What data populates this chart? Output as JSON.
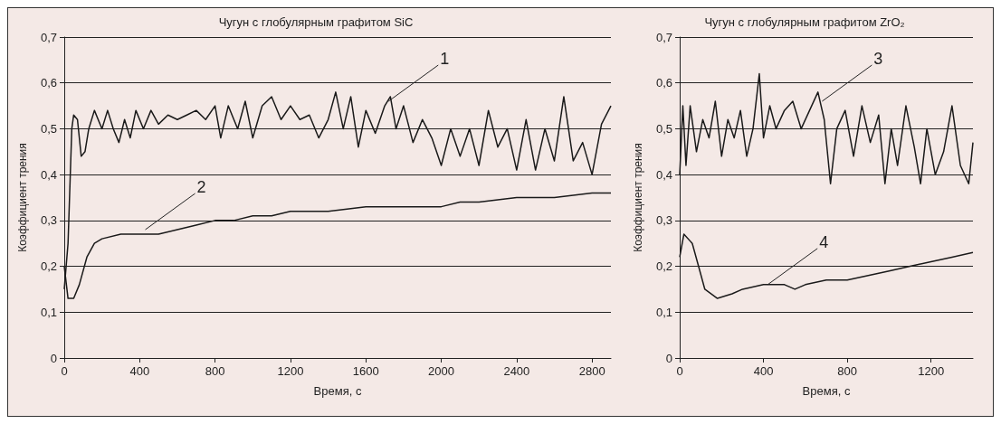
{
  "chart_data": [
    {
      "type": "line",
      "title": "Чугун с глобулярным графитом SiC",
      "xlabel": "Время, с",
      "ylabel": "Коэффициент трения",
      "xlim": [
        0,
        2900
      ],
      "xticks": [
        0,
        400,
        800,
        1200,
        1600,
        2000,
        2400,
        2800
      ],
      "ylim": [
        0,
        0.7
      ],
      "yticks": [
        0,
        {
          "value": 0.1,
          "label": "0,1"
        },
        {
          "value": 0.2,
          "label": "0,2"
        },
        {
          "value": 0.3,
          "label": "0,3"
        },
        {
          "value": 0.4,
          "label": "0,4"
        },
        {
          "value": 0.5,
          "label": "0,5"
        },
        {
          "value": 0.6,
          "label": "0,6"
        },
        {
          "value": 0.7,
          "label": "0,7"
        }
      ],
      "grid": "y",
      "marker": "none",
      "line_style": "solid",
      "series": [
        {
          "color": "#1a1a1a",
          "x": [
            0,
            20,
            40,
            50,
            70,
            90,
            110,
            130,
            160,
            200,
            230,
            260,
            290,
            320,
            350,
            380,
            420,
            460,
            500,
            550,
            600,
            650,
            700,
            750,
            800,
            830,
            870,
            920,
            960,
            1000,
            1050,
            1100,
            1150,
            1200,
            1250,
            1300,
            1350,
            1400,
            1440,
            1480,
            1520,
            1560,
            1600,
            1650,
            1700,
            1730,
            1760,
            1800,
            1850,
            1900,
            1950,
            2000,
            2050,
            2100,
            2150,
            2200,
            2250,
            2300,
            2350,
            2400,
            2450,
            2500,
            2550,
            2600,
            2650,
            2700,
            2750,
            2800,
            2850,
            2900
          ],
          "values": [
            0.15,
            0.25,
            0.5,
            0.53,
            0.52,
            0.44,
            0.45,
            0.5,
            0.54,
            0.5,
            0.54,
            0.5,
            0.47,
            0.52,
            0.48,
            0.54,
            0.5,
            0.54,
            0.51,
            0.53,
            0.52,
            0.53,
            0.54,
            0.52,
            0.55,
            0.48,
            0.55,
            0.5,
            0.56,
            0.48,
            0.55,
            0.57,
            0.52,
            0.55,
            0.52,
            0.53,
            0.48,
            0.52,
            0.58,
            0.5,
            0.57,
            0.46,
            0.54,
            0.49,
            0.55,
            0.57,
            0.5,
            0.55,
            0.47,
            0.52,
            0.48,
            0.42,
            0.5,
            0.44,
            0.5,
            0.42,
            0.54,
            0.46,
            0.5,
            0.41,
            0.52,
            0.41,
            0.5,
            0.43,
            0.57,
            0.43,
            0.47,
            0.4,
            0.51,
            0.55
          ]
        },
        {
          "color": "#1a1a1a",
          "x": [
            0,
            20,
            50,
            80,
            120,
            160,
            200,
            300,
            400,
            500,
            600,
            700,
            800,
            900,
            1000,
            1100,
            1200,
            1400,
            1600,
            1800,
            2000,
            2100,
            2200,
            2400,
            2600,
            2800,
            2900
          ],
          "values": [
            0.2,
            0.13,
            0.13,
            0.16,
            0.22,
            0.25,
            0.26,
            0.27,
            0.27,
            0.27,
            0.28,
            0.29,
            0.3,
            0.3,
            0.31,
            0.31,
            0.32,
            0.32,
            0.33,
            0.33,
            0.33,
            0.34,
            0.34,
            0.35,
            0.35,
            0.36,
            0.36
          ]
        }
      ],
      "annotations": [
        {
          "text": "1",
          "x": 1720,
          "y": 0.56
        },
        {
          "text": "2",
          "x": 430,
          "y": 0.28
        }
      ]
    },
    {
      "type": "line",
      "title": "Чугун с глобулярным графитом ZrO₂",
      "xlabel": "Время, с",
      "ylabel": "Коэффициент трения",
      "xlim": [
        0,
        1400
      ],
      "xticks": [
        0,
        400,
        800,
        1200
      ],
      "ylim": [
        0,
        0.7
      ],
      "yticks": [
        0,
        {
          "value": 0.1,
          "label": "0,1"
        },
        {
          "value": 0.2,
          "label": "0,2"
        },
        {
          "value": 0.3,
          "label": "0,3"
        },
        {
          "value": 0.4,
          "label": "0,4"
        },
        {
          "value": 0.5,
          "label": "0,5"
        },
        {
          "value": 0.6,
          "label": "0,6"
        },
        {
          "value": 0.7,
          "label": "0,7"
        }
      ],
      "grid": "y",
      "marker": "none",
      "line_style": "solid",
      "series": [
        {
          "color": "#1a1a1a",
          "x": [
            0,
            15,
            30,
            50,
            80,
            110,
            140,
            170,
            200,
            230,
            260,
            290,
            320,
            350,
            380,
            400,
            430,
            460,
            500,
            540,
            580,
            620,
            660,
            690,
            720,
            750,
            790,
            830,
            870,
            910,
            950,
            980,
            1010,
            1040,
            1080,
            1120,
            1150,
            1180,
            1220,
            1260,
            1300,
            1340,
            1380,
            1400
          ],
          "values": [
            0.4,
            0.55,
            0.42,
            0.55,
            0.45,
            0.52,
            0.48,
            0.56,
            0.44,
            0.52,
            0.48,
            0.54,
            0.44,
            0.5,
            0.62,
            0.48,
            0.55,
            0.5,
            0.54,
            0.56,
            0.5,
            0.54,
            0.58,
            0.52,
            0.38,
            0.5,
            0.54,
            0.44,
            0.55,
            0.47,
            0.53,
            0.38,
            0.5,
            0.42,
            0.55,
            0.46,
            0.38,
            0.5,
            0.4,
            0.45,
            0.55,
            0.42,
            0.38,
            0.47
          ]
        },
        {
          "color": "#1a1a1a",
          "x": [
            0,
            20,
            60,
            90,
            120,
            180,
            250,
            300,
            400,
            500,
            550,
            600,
            700,
            800,
            900,
            1000,
            1100,
            1200,
            1300,
            1400
          ],
          "values": [
            0.22,
            0.27,
            0.25,
            0.2,
            0.15,
            0.13,
            0.14,
            0.15,
            0.16,
            0.16,
            0.15,
            0.16,
            0.17,
            0.17,
            0.18,
            0.19,
            0.2,
            0.21,
            0.22,
            0.23
          ]
        }
      ],
      "annotations": [
        {
          "text": "3",
          "x": 680,
          "y": 0.56
        },
        {
          "text": "4",
          "x": 420,
          "y": 0.16
        }
      ]
    }
  ]
}
